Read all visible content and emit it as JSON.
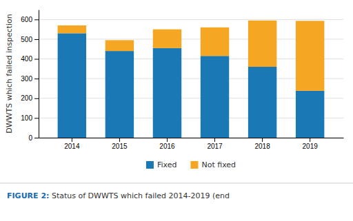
{
  "chart_data": {
    "type": "bar",
    "stacked": true,
    "categories": [
      "2014",
      "2015",
      "2016",
      "2017",
      "2018",
      "2019"
    ],
    "series": [
      {
        "name": "Fixed",
        "color": "#1a78b4",
        "values": [
          530,
          440,
          455,
          415,
          360,
          238
        ]
      },
      {
        "name": "Not fixed",
        "color": "#f5a623",
        "values": [
          40,
          55,
          95,
          145,
          235,
          355
        ]
      }
    ],
    "ylabel": "DWWTS which failed inspection",
    "ylim": [
      0,
      650
    ],
    "yticks": [
      0,
      100,
      200,
      300,
      400,
      500,
      600
    ],
    "grid": true,
    "legend": "bottom",
    "annotations": [
      "FIGURE 2:",
      " Status of DWWTS which failed 2014-2019 (end"
    ]
  }
}
